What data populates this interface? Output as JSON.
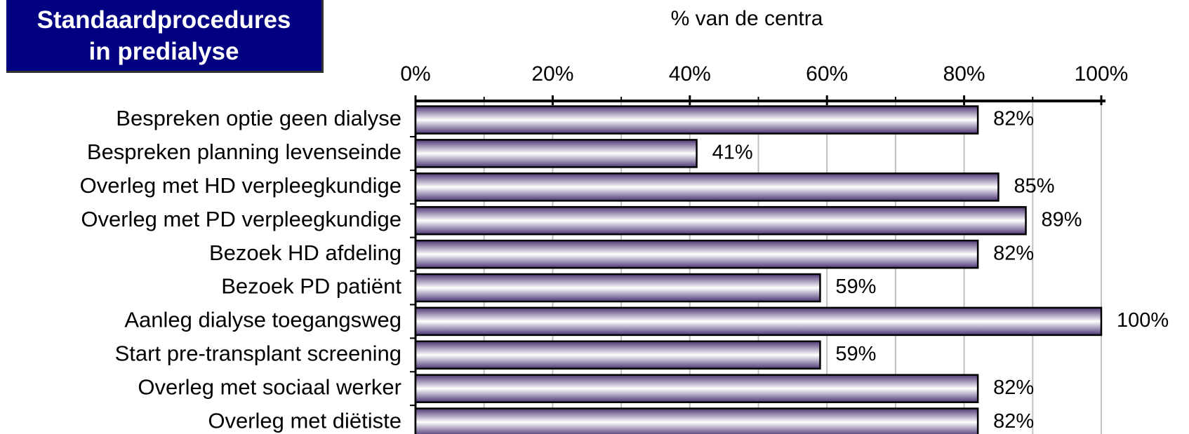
{
  "chart_data": {
    "type": "bar",
    "orientation": "horizontal",
    "title": "Standaardprocedures\nin predialyse",
    "xlabel": "% van de centra",
    "categories": [
      "Bespreken optie geen dialyse",
      "Bespreken planning levenseinde",
      "Overleg met HD verpleegkundige",
      "Overleg met PD verpleegkundige",
      "Bezoek HD afdeling",
      "Bezoek PD patiënt",
      "Aanleg dialyse toegangsweg",
      "Start pre-transplant screening",
      "Overleg met sociaal werker",
      "Overleg met diëtiste"
    ],
    "values": [
      82,
      41,
      85,
      89,
      82,
      59,
      100,
      59,
      82,
      82
    ],
    "value_labels": [
      "82%",
      "41%",
      "85%",
      "89%",
      "82%",
      "59%",
      "100%",
      "59%",
      "82%",
      "82%"
    ],
    "color": "#4e3575",
    "xlim": [
      0,
      100
    ],
    "xticks": [
      {
        "value": 0,
        "label": "0%"
      },
      {
        "value": 20,
        "label": "20%"
      },
      {
        "value": 40,
        "label": "40%"
      },
      {
        "value": 60,
        "label": "60%"
      },
      {
        "value": 80,
        "label": "80%"
      },
      {
        "value": 100,
        "label": "100%"
      }
    ],
    "xminor_ticks": [
      10,
      30,
      50,
      70,
      90
    ],
    "grid": true
  }
}
